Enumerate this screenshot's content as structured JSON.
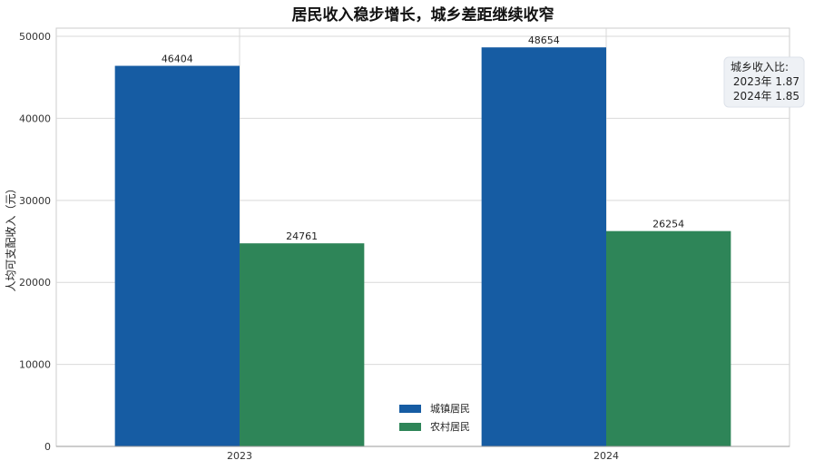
{
  "chart_data": {
    "type": "bar",
    "title": "居民收入稳步增长，城乡差距继续收窄",
    "xlabel": "",
    "ylabel": "人均可支配收入（元）",
    "categories": [
      "2023",
      "2024"
    ],
    "series": [
      {
        "name": "城镇居民",
        "values": [
          46404,
          48654
        ],
        "color": "#165ca3"
      },
      {
        "name": "农村居民",
        "values": [
          24761,
          26254
        ],
        "color": "#2e8558"
      }
    ],
    "ylim": [
      0,
      51000
    ],
    "yticks": [
      0,
      10000,
      20000,
      30000,
      40000,
      50000
    ],
    "grid": true,
    "legend_position": "bottom-center",
    "annotation": {
      "heading": "城乡收入比:",
      "lines": [
        "2023年 1.87",
        "2024年 1.85"
      ]
    }
  }
}
